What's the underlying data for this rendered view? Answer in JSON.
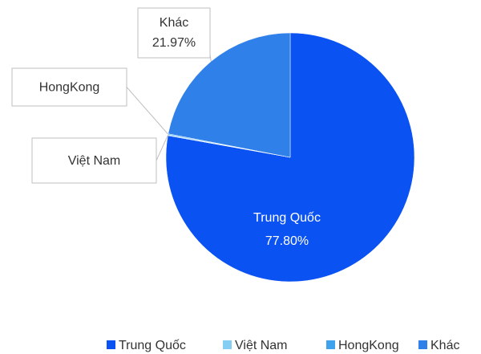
{
  "chart_data": {
    "type": "pie",
    "categories": [
      "Trung Quốc",
      "Việt Nam",
      "HongKong",
      "Khác"
    ],
    "values": [
      77.8,
      0.11,
      0.12,
      21.97
    ],
    "value_labels": [
      "77.80%",
      null,
      null,
      "21.97%"
    ],
    "colors": [
      "#0b52f2",
      "#86cdf3",
      "#3ea3ec",
      "#2f80e8"
    ],
    "legend": "bottom"
  }
}
